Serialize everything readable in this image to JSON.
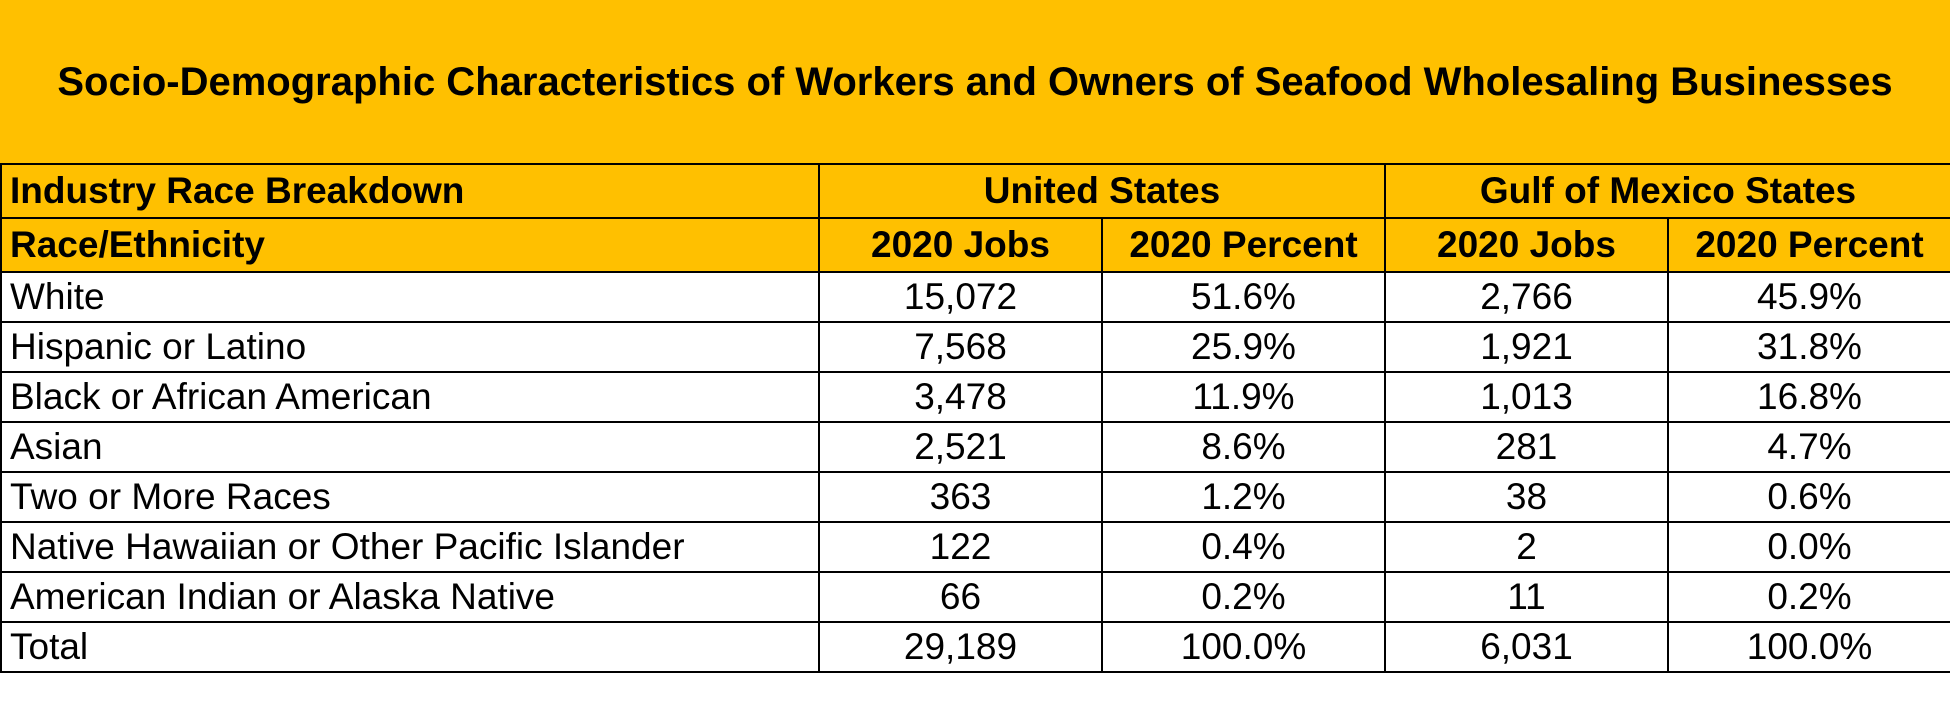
{
  "title": "Socio-Demographic Characteristics of Workers and Owners of Seafood Wholesaling Businesses",
  "header_row1": {
    "label": "Industry Race Breakdown",
    "group1": "United States",
    "group2": "Gulf of Mexico States"
  },
  "header_row2": {
    "label": "Race/Ethnicity",
    "us_jobs": "2020 Jobs",
    "us_pct": "2020 Percent",
    "gulf_jobs": "2020 Jobs",
    "gulf_pct": "2020 Percent"
  },
  "rows": [
    {
      "race": "White",
      "us_jobs": "15,072",
      "us_pct": "51.6%",
      "gulf_jobs": "2,766",
      "gulf_pct": "45.9%"
    },
    {
      "race": "Hispanic or Latino",
      "us_jobs": "7,568",
      "us_pct": "25.9%",
      "gulf_jobs": "1,921",
      "gulf_pct": "31.8%"
    },
    {
      "race": "Black or African American",
      "us_jobs": "3,478",
      "us_pct": "11.9%",
      "gulf_jobs": "1,013",
      "gulf_pct": "16.8%"
    },
    {
      "race": "Asian",
      "us_jobs": "2,521",
      "us_pct": "8.6%",
      "gulf_jobs": "281",
      "gulf_pct": "4.7%"
    },
    {
      "race": "Two or More Races",
      "us_jobs": "363",
      "us_pct": "1.2%",
      "gulf_jobs": "38",
      "gulf_pct": "0.6%"
    },
    {
      "race": "Native Hawaiian or Other Pacific Islander",
      "us_jobs": "122",
      "us_pct": "0.4%",
      "gulf_jobs": "2",
      "gulf_pct": "0.0%"
    },
    {
      "race": "American Indian or Alaska Native",
      "us_jobs": "66",
      "us_pct": "0.2%",
      "gulf_jobs": "11",
      "gulf_pct": "0.2%"
    },
    {
      "race": "Total",
      "us_jobs": "29,189",
      "us_pct": "100.0%",
      "gulf_jobs": "6,031",
      "gulf_pct": "100.0%"
    }
  ],
  "colors": {
    "header_fill": "#ffc000",
    "body_fill": "#ffffff",
    "grid_line": "#000000"
  }
}
